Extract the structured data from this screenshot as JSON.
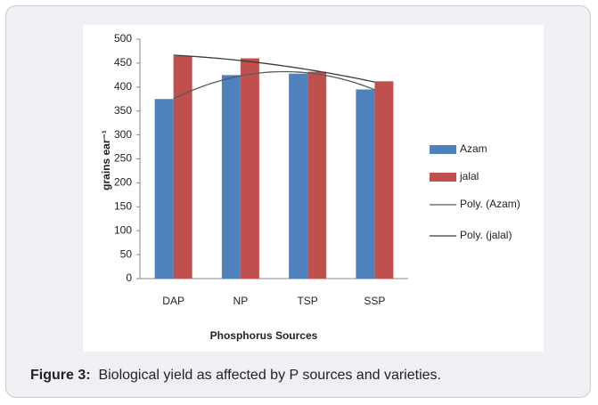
{
  "chart_data": {
    "type": "bar",
    "categories": [
      "DAP",
      "NP",
      "TSP",
      "SSP"
    ],
    "series": [
      {
        "name": "Azam",
        "color": "#4f81bd",
        "values": [
          375,
          425,
          428,
          395
        ],
        "trendline": {
          "name": "Poly. (Azam)",
          "order": 2,
          "color": "#5a5a5a"
        }
      },
      {
        "name": "jalal",
        "color": "#c0504d",
        "values": [
          465,
          460,
          432,
          412
        ],
        "trendline": {
          "name": "Poly. (jalal)",
          "order": 2,
          "color": "#3a3a3a"
        }
      }
    ],
    "ylabel": "grains ear⁻¹",
    "xlabel": "Phosphorus Sources",
    "ylim": [
      0,
      500
    ],
    "yticks": [
      0,
      50,
      100,
      150,
      200,
      250,
      300,
      350,
      400,
      450,
      500
    ],
    "grid": false,
    "legend": "right"
  },
  "caption": {
    "label": "Figure 3:",
    "text": "Biological yield as affected by P sources and varieties."
  }
}
